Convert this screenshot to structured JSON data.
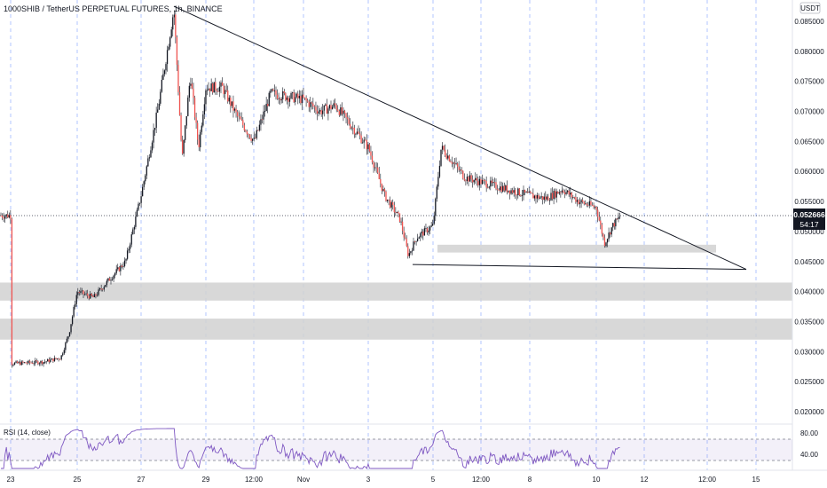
{
  "header": {
    "title": "1000SHIB / TetherUS PERPETUAL FUTURES, 1h, BINANCE",
    "currency": "USDT"
  },
  "price_tag": {
    "price": "0.052666",
    "countdown": "54:17"
  },
  "rsi": {
    "label": "RSI (14, close)",
    "upper": "80.00",
    "lower": "40.00"
  },
  "chart_data": {
    "type": "candlestick",
    "title": "1000SHIB / TetherUS PERPETUAL FUTURES, 1h, BINANCE",
    "ylim": [
      0.0185,
      0.0875
    ],
    "y_ticks": [
      "0.085000",
      "0.080000",
      "0.075000",
      "0.070000",
      "0.065000",
      "0.060000",
      "0.055000",
      "0.050000",
      "0.045000",
      "0.040000",
      "0.035000",
      "0.030000",
      "0.025000",
      "0.020000"
    ],
    "x_ticks": [
      "23",
      "25",
      "27",
      "29",
      "12:00",
      "Nov",
      "3",
      "5",
      "12:00",
      "8",
      "10",
      "12",
      "12:00",
      "15"
    ],
    "last_price": 0.052666,
    "price_path": [
      [
        "23",
        0.028
      ],
      [
        "24",
        0.0283
      ],
      [
        "24 12:00",
        0.029
      ],
      [
        "24 18:00",
        0.033
      ],
      [
        "25",
        0.04
      ],
      [
        "25 12:00",
        0.039
      ],
      [
        "26",
        0.042
      ],
      [
        "26 12:00",
        0.045
      ],
      [
        "27",
        0.056
      ],
      [
        "27 12:00",
        0.07
      ],
      [
        "28",
        0.087
      ],
      [
        "28 06:00",
        0.062
      ],
      [
        "28 12:00",
        0.076
      ],
      [
        "28 18:00",
        0.064
      ],
      [
        "29",
        0.074
      ],
      [
        "29 12:00",
        0.074
      ],
      [
        "30",
        0.069
      ],
      [
        "30 12:00",
        0.065
      ],
      [
        "31",
        0.073
      ],
      [
        "Nov",
        0.072
      ],
      [
        "1 12:00",
        0.07
      ],
      [
        "2",
        0.071
      ],
      [
        "3",
        0.064
      ],
      [
        "3 12:00",
        0.056
      ],
      [
        "4",
        0.052
      ],
      [
        "4 06:00",
        0.046
      ],
      [
        "4 12:00",
        0.049
      ],
      [
        "5",
        0.051
      ],
      [
        "5 06:00",
        0.064
      ],
      [
        "6",
        0.059
      ],
      [
        "7",
        0.0575
      ],
      [
        "8",
        0.056
      ],
      [
        "8 12:00",
        0.0555
      ],
      [
        "9",
        0.057
      ],
      [
        "9 12:00",
        0.055
      ],
      [
        "10",
        0.054
      ],
      [
        "10 06:00",
        0.048
      ],
      [
        "10 12:00",
        0.051
      ],
      [
        "10 18:00",
        0.052666
      ]
    ],
    "support_zones": [
      {
        "low": 0.0465,
        "high": 0.0478
      },
      {
        "low": 0.0385,
        "high": 0.0415
      },
      {
        "low": 0.032,
        "high": 0.0355
      }
    ],
    "trendlines": [
      {
        "from": [
          "28",
          0.0875
        ],
        "to": [
          "15",
          0.0437
        ]
      },
      {
        "from": [
          "4",
          0.0445
        ],
        "to": [
          "15",
          0.0437
        ]
      }
    ],
    "rsi_levels": [
      80,
      40
    ],
    "colors": {
      "up": "#26a69a",
      "down": "#ef5350",
      "wick": "#131722",
      "rsi": "#7e57c2",
      "zone": "#d1d1d1"
    }
  }
}
